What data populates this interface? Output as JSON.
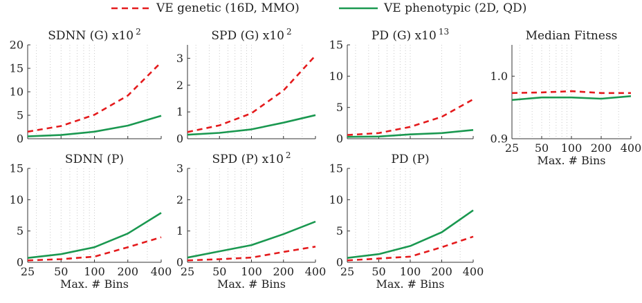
{
  "legend": [
    {
      "label": "VE genetic (16D, MMO)",
      "color": "#e41a1c",
      "dash": "dashed"
    },
    {
      "label": "VE phenotypic (2D, QD)",
      "color": "#1a9850",
      "dash": "solid"
    }
  ],
  "chart_data": [
    {
      "type": "line",
      "title": "SDNN (G) x10",
      "title_exp": "2",
      "x": [
        25,
        50,
        100,
        200,
        400
      ],
      "xscale": "log",
      "xlim": [
        25,
        400
      ],
      "ylim": [
        0,
        20
      ],
      "yticks": [
        0,
        5,
        10,
        15,
        20
      ],
      "grid": "x-dotted",
      "xlabel": "",
      "show_xticklabels": false,
      "series": [
        {
          "name": "VE genetic (16D, MMO)",
          "values": [
            1.5,
            2.7,
            5.1,
            9.2,
            16.3
          ]
        },
        {
          "name": "VE phenotypic (2D, QD)",
          "values": [
            0.5,
            0.8,
            1.5,
            2.8,
            4.9
          ]
        }
      ]
    },
    {
      "type": "line",
      "title": "SPD (G) x10",
      "title_exp": "2",
      "x": [
        25,
        50,
        100,
        200,
        400
      ],
      "xscale": "log",
      "xlim": [
        25,
        400
      ],
      "ylim": [
        0,
        3.5
      ],
      "yticks": [
        0,
        1,
        2,
        3
      ],
      "grid": "x-dotted",
      "xlabel": "",
      "show_xticklabels": false,
      "series": [
        {
          "name": "VE genetic (16D, MMO)",
          "values": [
            0.25,
            0.5,
            0.95,
            1.8,
            3.1
          ]
        },
        {
          "name": "VE phenotypic (2D, QD)",
          "values": [
            0.15,
            0.22,
            0.35,
            0.6,
            0.88
          ]
        }
      ]
    },
    {
      "type": "line",
      "title": "PD (G) x10",
      "title_exp": "13",
      "x": [
        25,
        50,
        100,
        200,
        400
      ],
      "xscale": "log",
      "xlim": [
        25,
        400
      ],
      "ylim": [
        0,
        15
      ],
      "yticks": [
        0,
        5,
        10,
        15
      ],
      "grid": "x-dotted",
      "xlabel": "",
      "show_xticklabels": false,
      "series": [
        {
          "name": "VE genetic (16D, MMO)",
          "values": [
            0.6,
            0.9,
            1.9,
            3.5,
            6.3
          ]
        },
        {
          "name": "VE phenotypic (2D, QD)",
          "values": [
            0.3,
            0.35,
            0.7,
            0.9,
            1.4
          ]
        }
      ]
    },
    {
      "type": "line",
      "title": "Median Fitness",
      "title_exp": "",
      "x": [
        25,
        50,
        100,
        200,
        400
      ],
      "xscale": "log",
      "xlim": [
        25,
        400
      ],
      "ylim": [
        0.9,
        1.05
      ],
      "yticks": [
        0.9,
        1.0
      ],
      "ytick_labels": [
        "0.9",
        "1.0"
      ],
      "grid": "x-dotted",
      "xlabel": "Max. # Bins",
      "show_xticklabels": true,
      "series": [
        {
          "name": "VE genetic (16D, MMO)",
          "values": [
            0.973,
            0.974,
            0.976,
            0.973,
            0.973
          ]
        },
        {
          "name": "VE phenotypic (2D, QD)",
          "values": [
            0.962,
            0.966,
            0.966,
            0.964,
            0.968
          ]
        }
      ]
    },
    {
      "type": "line",
      "title": "SDNN (P)",
      "title_exp": "",
      "x": [
        25,
        50,
        100,
        200,
        400
      ],
      "xscale": "log",
      "xlim": [
        25,
        400
      ],
      "ylim": [
        0,
        15
      ],
      "yticks": [
        0,
        5,
        10,
        15
      ],
      "grid": "x-dotted",
      "xlabel": "Max. # Bins",
      "show_xticklabels": true,
      "series": [
        {
          "name": "VE genetic (16D, MMO)",
          "values": [
            0.3,
            0.5,
            0.9,
            2.4,
            4.0
          ]
        },
        {
          "name": "VE phenotypic (2D, QD)",
          "values": [
            0.7,
            1.3,
            2.4,
            4.6,
            7.9
          ]
        }
      ]
    },
    {
      "type": "line",
      "title": "SPD (P) x10",
      "title_exp": "2",
      "x": [
        25,
        50,
        100,
        200,
        400
      ],
      "xscale": "log",
      "xlim": [
        25,
        400
      ],
      "ylim": [
        0,
        3
      ],
      "yticks": [
        0,
        1,
        2,
        3
      ],
      "grid": "x-dotted",
      "xlabel": "Max. # Bins",
      "show_xticklabels": true,
      "series": [
        {
          "name": "VE genetic (16D, MMO)",
          "values": [
            0.06,
            0.1,
            0.15,
            0.33,
            0.5
          ]
        },
        {
          "name": "VE phenotypic (2D, QD)",
          "values": [
            0.15,
            0.35,
            0.55,
            0.9,
            1.3
          ]
        }
      ]
    },
    {
      "type": "line",
      "title": "PD (P)",
      "title_exp": "",
      "x": [
        25,
        50,
        100,
        200,
        400
      ],
      "xscale": "log",
      "xlim": [
        25,
        400
      ],
      "ylim": [
        0,
        15
      ],
      "yticks": [
        0,
        5,
        10,
        15
      ],
      "grid": "x-dotted",
      "xlabel": "Max. # Bins",
      "show_xticklabels": true,
      "series": [
        {
          "name": "VE genetic (16D, MMO)",
          "values": [
            0.3,
            0.6,
            0.9,
            2.4,
            4.1
          ]
        },
        {
          "name": "VE phenotypic (2D, QD)",
          "values": [
            0.7,
            1.3,
            2.6,
            4.8,
            8.3
          ]
        }
      ]
    }
  ]
}
